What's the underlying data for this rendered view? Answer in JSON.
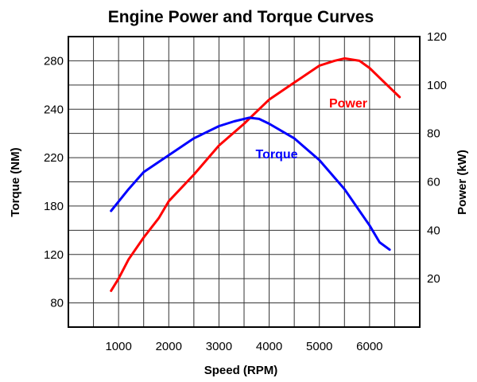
{
  "chart_data": {
    "type": "line",
    "title": "Engine Power and Torque Curves",
    "xlabel": "Speed (RPM)",
    "ylabel_left": "Torque (NM)",
    "ylabel_right": "Power (kW)",
    "x_ticks": [
      "1000",
      "2000",
      "3000",
      "4000",
      "5000",
      "6000"
    ],
    "y_left_ticks": [
      "80",
      "120",
      "180",
      "220",
      "240",
      "280"
    ],
    "y_right_ticks": [
      "20",
      "40",
      "60",
      "80",
      "100",
      "120"
    ],
    "xlim": [
      0,
      7000
    ],
    "ylim_right": [
      0,
      120
    ],
    "grid": true,
    "series": [
      {
        "name": "Power",
        "axis": "right",
        "color": "#ff0000",
        "x": [
          850,
          1000,
          1200,
          1500,
          1800,
          2000,
          2500,
          3000,
          3500,
          3700,
          4000,
          4500,
          5000,
          5300,
          5500,
          5800,
          6000,
          6300,
          6600
        ],
        "y": [
          15,
          20,
          28,
          37,
          45,
          52,
          63,
          75,
          84,
          88,
          94,
          101,
          108,
          110,
          111,
          110,
          107,
          101,
          95
        ]
      },
      {
        "name": "Torque",
        "axis": "left",
        "color": "#0000ff",
        "x": [
          850,
          1200,
          1500,
          2000,
          2500,
          3000,
          3300,
          3600,
          3800,
          4000,
          4500,
          5000,
          5500,
          5800,
          6000,
          6200,
          6400
        ],
        "y": [
          48,
          57,
          64,
          71,
          78,
          83,
          85,
          86.5,
          86,
          84,
          78,
          69,
          57,
          48,
          42,
          35,
          32
        ]
      }
    ]
  }
}
